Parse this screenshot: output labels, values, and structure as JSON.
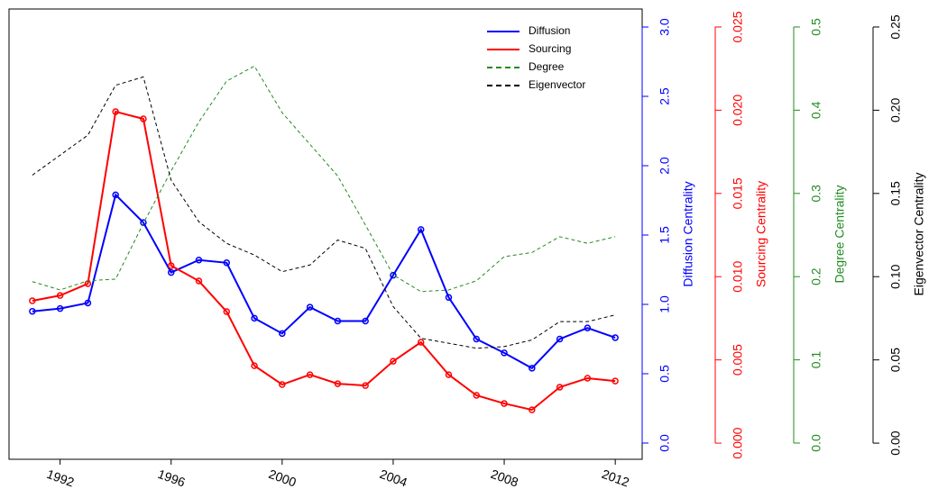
{
  "chart_data": {
    "type": "line",
    "x": [
      1991,
      1992,
      1993,
      1994,
      1995,
      1996,
      1997,
      1998,
      1999,
      2000,
      2001,
      2002,
      2003,
      2004,
      2005,
      2006,
      2007,
      2008,
      2009,
      2010,
      2011,
      2012
    ],
    "xlim": [
      1990.16,
      2012.97
    ],
    "xticks": [
      1992,
      1996,
      2000,
      2004,
      2008,
      2012
    ],
    "legend": "top-right",
    "axes": [
      {
        "label": "Diffusion Centrality",
        "color": "#0000ff",
        "lim": [
          -0.117,
          3.13
        ],
        "ticks": [
          {
            "value": 0,
            "label": "0.0"
          },
          0.5,
          {
            "value": 1,
            "label": "1.0"
          },
          1.5,
          {
            "value": 2,
            "label": "2.0"
          },
          2.5,
          {
            "value": 3,
            "label": "3.0"
          }
        ]
      },
      {
        "label": "Sourcing Centrality",
        "color": "#ff0000",
        "lim": [
          -0.00097,
          0.02608
        ],
        "ticks": [
          {
            "value": 0,
            "label": "0.000"
          },
          0.005,
          {
            "value": 0.01,
            "label": "0.010"
          },
          0.015,
          {
            "value": 0.02,
            "label": "0.020"
          },
          0.025
        ]
      },
      {
        "label": "Degree Centrality",
        "color": "#228b22",
        "lim": [
          -0.0195,
          0.5216
        ],
        "ticks": [
          {
            "value": 0,
            "label": "0.0"
          },
          0.1,
          0.2,
          0.3,
          0.4,
          0.5
        ]
      },
      {
        "label": "Eigenvector Centrality",
        "color": "#000000",
        "lim": [
          -0.0097,
          0.2608
        ],
        "ticks": [
          {
            "value": 0,
            "label": "0.00"
          },
          0.05,
          {
            "value": 0.1,
            "label": "0.10"
          },
          0.15,
          {
            "value": 0.2,
            "label": "0.20"
          },
          0.25
        ]
      }
    ],
    "series": [
      {
        "name": "Diffusion",
        "color": "#0000ff",
        "axis": 0,
        "dashed": false,
        "markers": true,
        "values": [
          0.95,
          0.97,
          1.01,
          1.79,
          1.59,
          1.23,
          1.32,
          1.3,
          0.9,
          0.79,
          0.98,
          0.88,
          0.88,
          1.21,
          1.54,
          1.05,
          0.75,
          0.65,
          0.54,
          0.75,
          0.83,
          0.76
        ]
      },
      {
        "name": "Sourcing",
        "color": "#ff0000",
        "axis": 1,
        "dashed": false,
        "markers": true,
        "values": [
          0.00855,
          0.00887,
          0.00958,
          0.01991,
          0.01948,
          0.01066,
          0.00974,
          0.0079,
          0.00465,
          0.00352,
          0.00411,
          0.00357,
          0.00346,
          0.00492,
          0.00606,
          0.00411,
          0.00287,
          0.00238,
          0.002,
          0.00336,
          0.0039,
          0.00373
        ]
      },
      {
        "name": "Degree",
        "color": "#228b22",
        "axis": 2,
        "dashed": true,
        "markers": false,
        "values": [
          0.194,
          0.184,
          0.195,
          0.197,
          0.264,
          0.327,
          0.386,
          0.435,
          0.453,
          0.397,
          0.359,
          0.321,
          0.262,
          0.202,
          0.182,
          0.184,
          0.195,
          0.224,
          0.229,
          0.248,
          0.24,
          0.248
        ]
      },
      {
        "name": "Eigenvector",
        "color": "#000000",
        "axis": 3,
        "dashed": true,
        "markers": false,
        "values": [
          0.161,
          0.173,
          0.185,
          0.215,
          0.22,
          0.158,
          0.133,
          0.12,
          0.113,
          0.103,
          0.107,
          0.122,
          0.117,
          0.082,
          0.063,
          0.06,
          0.057,
          0.058,
          0.062,
          0.073,
          0.073,
          0.077
        ]
      }
    ]
  }
}
